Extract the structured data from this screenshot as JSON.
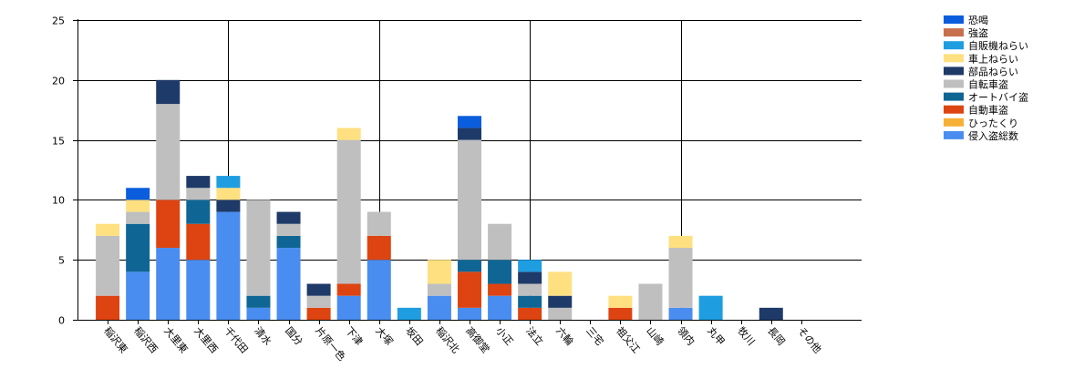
{
  "chart_data": {
    "type": "bar",
    "stacked": true,
    "grid": true,
    "legend_position": "top-right",
    "ylim": [
      0,
      25
    ],
    "yticks": [
      0,
      5,
      10,
      15,
      20,
      25
    ],
    "categories": [
      "稲沢東",
      "稲沢西",
      "大里東",
      "大里西",
      "千代田",
      "清水",
      "国分",
      "片原一色",
      "下津",
      "大塚",
      "坂田",
      "稲沢北",
      "高御堂",
      "小正",
      "法立",
      "六輪",
      "三宅",
      "祖父江",
      "山崎",
      "領内",
      "丸甲",
      "牧川",
      "長岡",
      "その他"
    ],
    "series": [
      {
        "name": "侵入盗総数",
        "color": "#4a8df0",
        "values": [
          0,
          4,
          6,
          5,
          9,
          1,
          6,
          0,
          2,
          5,
          0,
          2,
          1,
          2,
          0,
          0,
          0,
          0,
          0,
          1,
          0,
          0,
          0,
          0
        ]
      },
      {
        "name": "ひったくり",
        "color": "#f6b037",
        "values": [
          0,
          0,
          0,
          0,
          0,
          0,
          0,
          0,
          0,
          0,
          0,
          0,
          0,
          0,
          0,
          0,
          0,
          0,
          0,
          0,
          0,
          0,
          0,
          0
        ]
      },
      {
        "name": "自動車盗",
        "color": "#dd4411",
        "values": [
          2,
          0,
          4,
          3,
          0,
          0,
          0,
          1,
          1,
          2,
          0,
          0,
          3,
          1,
          1,
          0,
          0,
          1,
          0,
          0,
          0,
          0,
          0,
          0
        ]
      },
      {
        "name": "オートバイ盗",
        "color": "#0f6694",
        "values": [
          0,
          4,
          0,
          2,
          0,
          1,
          1,
          0,
          0,
          0,
          0,
          0,
          1,
          2,
          1,
          0,
          0,
          0,
          0,
          0,
          0,
          0,
          0,
          0
        ]
      },
      {
        "name": "自転車盗",
        "color": "#bfbfbf",
        "values": [
          5,
          1,
          8,
          1,
          0,
          8,
          1,
          1,
          12,
          2,
          0,
          1,
          10,
          3,
          1,
          1,
          0,
          0,
          3,
          5,
          0,
          0,
          0,
          0
        ]
      },
      {
        "name": "部品ねらい",
        "color": "#1e3a68",
        "values": [
          0,
          0,
          2,
          1,
          1,
          0,
          1,
          1,
          0,
          0,
          0,
          0,
          1,
          0,
          1,
          1,
          0,
          0,
          0,
          0,
          0,
          0,
          1,
          0
        ]
      },
      {
        "name": "車上ねらい",
        "color": "#ffe080",
        "values": [
          1,
          1,
          0,
          0,
          1,
          0,
          0,
          0,
          1,
          0,
          0,
          2,
          0,
          0,
          0,
          2,
          0,
          1,
          0,
          1,
          0,
          0,
          0,
          0
        ]
      },
      {
        "name": "自販機ねらい",
        "color": "#1e9ee0",
        "values": [
          0,
          0,
          0,
          0,
          1,
          0,
          0,
          0,
          0,
          0,
          1,
          0,
          0,
          0,
          1,
          0,
          0,
          0,
          0,
          0,
          2,
          0,
          0,
          0
        ]
      },
      {
        "name": "強盗",
        "color": "#c8704e",
        "values": [
          0,
          0,
          0,
          0,
          0,
          0,
          0,
          0,
          0,
          0,
          0,
          0,
          0,
          0,
          0,
          0,
          0,
          0,
          0,
          0,
          0,
          0,
          0,
          0
        ]
      },
      {
        "name": "恐喝",
        "color": "#0a5ede",
        "values": [
          0,
          1,
          0,
          0,
          0,
          0,
          0,
          0,
          0,
          0,
          0,
          0,
          1,
          0,
          0,
          0,
          0,
          0,
          0,
          0,
          0,
          0,
          0,
          0
        ]
      }
    ]
  }
}
